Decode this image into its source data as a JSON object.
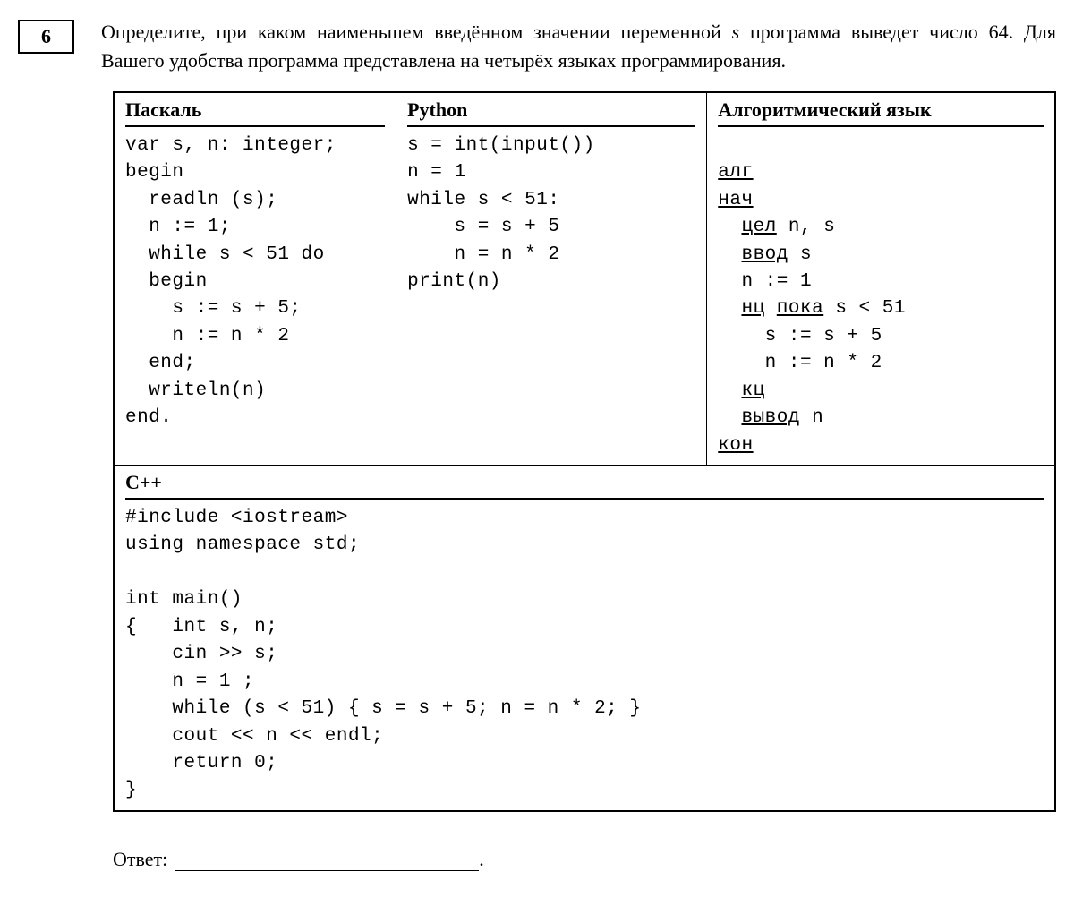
{
  "problem": {
    "number": "6",
    "text_part1": "Определите, при каком наименьшем введённом значении переменной ",
    "text_var": "s",
    "text_part2": " программа выведет число 64. Для Вашего удобства программа представлена на четырёх языках программирования."
  },
  "headers": {
    "pascal": "Паскаль",
    "python": "Python",
    "algo": "Алгоритмический язык",
    "cpp": "С++"
  },
  "code": {
    "pascal": "var s, n: integer;\nbegin\n  readln (s);\n  n := 1;\n  while s < 51 do\n  begin\n    s := s + 5;\n    n := n * 2\n  end;\n  writeln(n)\nend.",
    "python": "s = int(input())\nn = 1\nwhile s < 51:\n    s = s + 5\n    n = n * 2\nprint(n)",
    "cpp": "#include <iostream>\nusing namespace std;\n\nint main()\n{   int s, n;\n    cin >> s;\n    n = 1 ;\n    while (s < 51) { s = s + 5; n = n * 2; }\n    cout << n << endl;\n    return 0;\n}"
  },
  "algo": {
    "l1_kw": "алг",
    "l2_kw": "нач",
    "l3_kw": "цел",
    "l3_rest": " n, s",
    "l4_kw": "ввод",
    "l4_rest": " s",
    "l5": "  n := 1",
    "l6_kw1": "нц",
    "l6_kw2": "пока",
    "l6_rest": " s < 51",
    "l7": "    s := s + 5",
    "l8": "    n := n * 2",
    "l9_kw": "кц",
    "l10_kw": "вывод",
    "l10_rest": " n",
    "l11_kw": "кон"
  },
  "answer": {
    "label": "Ответ:",
    "period": "."
  },
  "style": {
    "text_color": "#000000",
    "background_color": "#ffffff",
    "border_color": "#000000",
    "body_font": "Times New Roman",
    "code_font": "Courier New",
    "body_fontsize": 22,
    "code_fontsize": 21
  }
}
